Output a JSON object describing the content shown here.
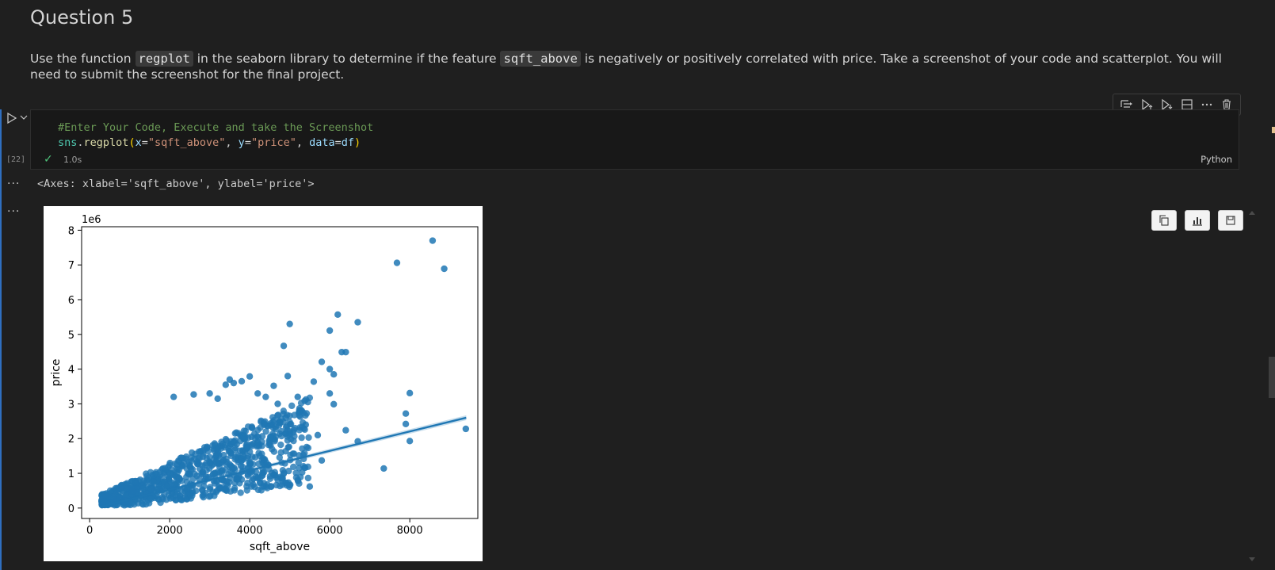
{
  "markdown": {
    "title": "Question 5",
    "para_before_1": "Use the function ",
    "code_1": "regplot",
    "para_before_2": " in the seaborn library to determine if the feature ",
    "code_2": "sqft_above",
    "para_after": " is negatively or positively correlated with price. Take a screenshot of your code and scatterplot. You will need to submit the screenshot for the final project."
  },
  "cell": {
    "exec_count": "[22]",
    "code_comment": "#Enter Your Code, Execute and take the Screenshot",
    "code_tokens": {
      "obj": "sns",
      "dot": ".",
      "fn": "regplot",
      "open": "(",
      "p1": "x",
      "eq1": "=",
      "s1": "\"sqft_above\"",
      "comma1": ", ",
      "p2": "y",
      "eq2": "=",
      "s2": "\"price\"",
      "comma2": ", ",
      "p3": "data",
      "eq3": "=",
      "v3": "df",
      "close": ")"
    },
    "status_time": "1.0s",
    "language": "Python"
  },
  "toolbar_icons": [
    "run-by-line-icon",
    "execute-above-icon",
    "execute-below-icon",
    "split-cell-icon",
    "more-icon",
    "delete-icon"
  ],
  "output": {
    "text": "<Axes: xlabel='sqft_above', ylabel='price'>",
    "action_icons": [
      "copy-icon",
      "chart-icon",
      "save-icon"
    ]
  },
  "chart_data": {
    "type": "scatter",
    "xlabel": "sqft_above",
    "ylabel": "price",
    "y_offset_label": "1e6",
    "xlim": [
      -200,
      9700
    ],
    "ylim": [
      -0.3,
      8.1
    ],
    "xticks": [
      0,
      2000,
      4000,
      6000,
      8000
    ],
    "yticks": [
      0,
      1,
      2,
      3,
      4,
      5,
      6,
      7,
      8
    ],
    "color": "#1f77b4",
    "regression_line": {
      "x": [
        290,
        9410
      ],
      "y": [
        0.05,
        2.6
      ]
    },
    "points": [
      [
        8570,
        7.7
      ],
      [
        7680,
        7.06
      ],
      [
        8860,
        6.89
      ],
      [
        6200,
        5.57
      ],
      [
        6700,
        5.35
      ],
      [
        5000,
        5.3
      ],
      [
        6000,
        5.11
      ],
      [
        4850,
        4.67
      ],
      [
        6300,
        4.49
      ],
      [
        6400,
        4.49
      ],
      [
        5800,
        4.21
      ],
      [
        6000,
        4.0
      ],
      [
        6100,
        3.85
      ],
      [
        4000,
        3.79
      ],
      [
        4950,
        3.8
      ],
      [
        5600,
        3.64
      ],
      [
        3500,
        3.7
      ],
      [
        3600,
        3.6
      ],
      [
        3800,
        3.65
      ],
      [
        4600,
        3.52
      ],
      [
        3400,
        3.55
      ],
      [
        8000,
        3.31
      ],
      [
        6000,
        3.3
      ],
      [
        6100,
        2.99
      ],
      [
        7900,
        2.72
      ],
      [
        7900,
        2.42
      ],
      [
        9400,
        2.28
      ],
      [
        6400,
        2.24
      ],
      [
        8000,
        1.93
      ],
      [
        6700,
        1.92
      ],
      [
        7350,
        1.14
      ],
      [
        5800,
        1.37
      ],
      [
        5500,
        0.62
      ],
      [
        2100,
        3.2
      ],
      [
        2600,
        3.27
      ],
      [
        3000,
        3.3
      ],
      [
        3200,
        3.15
      ],
      [
        4200,
        3.3
      ],
      [
        4400,
        3.2
      ],
      [
        5200,
        3.2
      ],
      [
        4700,
        3.0
      ],
      [
        4900,
        2.6
      ],
      [
        5400,
        2.4
      ],
      [
        5000,
        2.15
      ],
      [
        5700,
        2.1
      ]
    ]
  }
}
